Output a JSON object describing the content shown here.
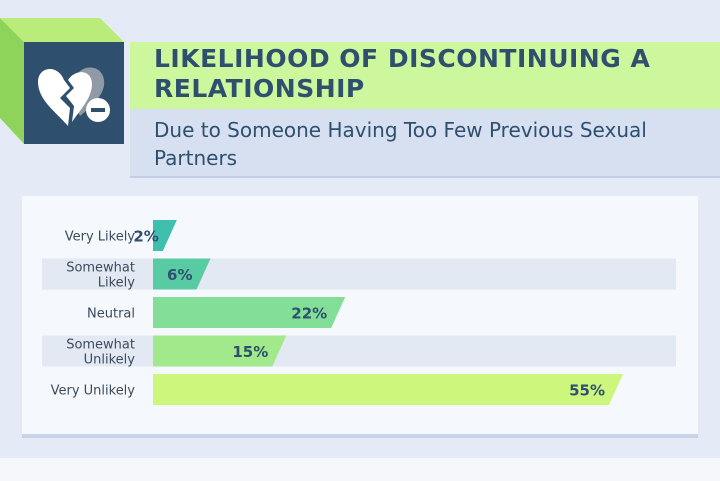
{
  "header": {
    "title": "LIKELIHOOD OF DISCONTINUING A RELATIONSHIP",
    "subtitle": "Due to Someone Having Too Few Previous Sexual Partners",
    "icon": "broken-heart-minus-icon"
  },
  "colors": {
    "background": "#e4ebf7",
    "navy": "#2f4f6e",
    "title_band": "#ccf79c",
    "subtitle_band": "#d6e0f1"
  },
  "chart_data": {
    "type": "bar",
    "orientation": "horizontal",
    "categories": [
      "Very Likely",
      "Somewhat Likely",
      "Neutral",
      "Somewhat Unlikely",
      "Very Unlikely"
    ],
    "values": [
      2,
      6,
      22,
      15,
      55
    ],
    "value_labels": [
      "2%",
      "6%",
      "22%",
      "15%",
      "55%"
    ],
    "bar_colors": [
      "#3fbfae",
      "#58cba2",
      "#83df98",
      "#a2e98b",
      "#cdf77c"
    ],
    "unit": "%",
    "xlim": [
      0,
      55
    ],
    "grid": false,
    "legend": "none",
    "title": "",
    "xlabel": "",
    "ylabel": ""
  }
}
